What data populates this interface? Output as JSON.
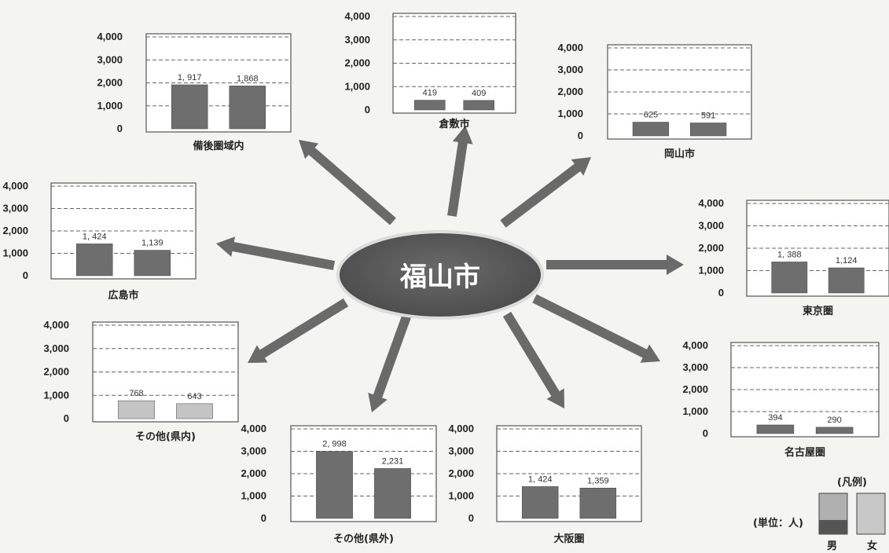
{
  "center": {
    "label": "福山市"
  },
  "colors": {
    "male": "#6e6e6e",
    "female": "#b4b4b4",
    "female_light": "#c4c4c4",
    "ellipse": "#5a5a5a",
    "arrow": "#6a6a6a"
  },
  "chart_data": [
    {
      "type": "bar",
      "title": "備後圏域内",
      "categories": [
        "男",
        "女"
      ],
      "values": [
        1917,
        1868
      ],
      "value_labels": [
        "1, 917",
        "1,868"
      ],
      "ylim": [
        0,
        4000
      ],
      "yticks": [
        "0",
        "1,000",
        "2,000",
        "3,000",
        "4,000"
      ],
      "grid": true
    },
    {
      "type": "bar",
      "title": "倉敷市",
      "categories": [
        "男",
        "女"
      ],
      "values": [
        419,
        409
      ],
      "value_labels": [
        "419",
        "409"
      ],
      "ylim": [
        0,
        4000
      ],
      "yticks": [
        "0",
        "1,000",
        "2,000",
        "3,000",
        "4,000"
      ],
      "grid": true
    },
    {
      "type": "bar",
      "title": "岡山市",
      "categories": [
        "男",
        "女"
      ],
      "values": [
        625,
        591
      ],
      "value_labels": [
        "625",
        "591"
      ],
      "ylim": [
        0,
        4000
      ],
      "yticks": [
        "0",
        "1,000",
        "2,000",
        "3,000",
        "4,000"
      ],
      "grid": true
    },
    {
      "type": "bar",
      "title": "広島市",
      "categories": [
        "男",
        "女"
      ],
      "values": [
        1424,
        1139
      ],
      "value_labels": [
        "1, 424",
        "1,139"
      ],
      "ylim": [
        0,
        4000
      ],
      "yticks": [
        "0",
        "1,000",
        "2,000",
        "3,000",
        "4,000"
      ],
      "grid": true
    },
    {
      "type": "bar",
      "title": "東京圏",
      "categories": [
        "男",
        "女"
      ],
      "values": [
        1388,
        1124
      ],
      "value_labels": [
        "1, 388",
        "1,124"
      ],
      "ylim": [
        0,
        4000
      ],
      "yticks": [
        "0",
        "1,000",
        "2,000",
        "3,000",
        "4,000"
      ],
      "grid": true
    },
    {
      "type": "bar",
      "title": "その他(県内)",
      "categories": [
        "男",
        "女"
      ],
      "values": [
        768,
        643
      ],
      "value_labels": [
        "768",
        "643"
      ],
      "ylim": [
        0,
        4000
      ],
      "yticks": [
        "0",
        "1,000",
        "2,000",
        "3,000",
        "4,000"
      ],
      "grid": true,
      "light": true
    },
    {
      "type": "bar",
      "title": "その他(県外)",
      "categories": [
        "男",
        "女"
      ],
      "values": [
        2998,
        2231
      ],
      "value_labels": [
        "2, 998",
        "2,231"
      ],
      "ylim": [
        0,
        4000
      ],
      "yticks": [
        "0",
        "1,000",
        "2,000",
        "3,000",
        "4,000"
      ],
      "grid": true
    },
    {
      "type": "bar",
      "title": "大阪圏",
      "categories": [
        "男",
        "女"
      ],
      "values": [
        1424,
        1359
      ],
      "value_labels": [
        "1, 424",
        "1,359"
      ],
      "ylim": [
        0,
        4000
      ],
      "yticks": [
        "0",
        "1,000",
        "2,000",
        "3,000",
        "4,000"
      ],
      "grid": true
    },
    {
      "type": "bar",
      "title": "名古屋圏",
      "categories": [
        "男",
        "女"
      ],
      "values": [
        394,
        290
      ],
      "value_labels": [
        "394",
        "290"
      ],
      "ylim": [
        0,
        4000
      ],
      "yticks": [
        "0",
        "1,000",
        "2,000",
        "3,000",
        "4,000"
      ],
      "grid": true
    }
  ],
  "legend": {
    "title": "(凡例)",
    "unit": "(単位：人)",
    "male": "男",
    "female": "女"
  }
}
